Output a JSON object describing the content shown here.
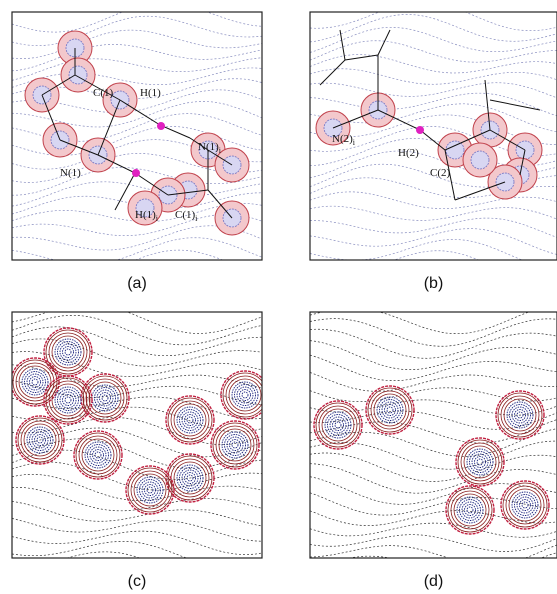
{
  "panels": [
    {
      "label": "(a)",
      "atoms": [
        {
          "text": "C(1)"
        },
        {
          "text": "H(1)"
        },
        {
          "text": "N(1)",
          "subscript": "i"
        },
        {
          "text": "N(1)"
        },
        {
          "text": "H(1)",
          "subscript": "i"
        },
        {
          "text": "C(1)",
          "subscript": "i"
        }
      ]
    },
    {
      "label": "(b)",
      "atoms": [
        {
          "text": "N(2)",
          "subscript": "i"
        },
        {
          "text": "H(2)"
        },
        {
          "text": "C(2)"
        }
      ]
    },
    {
      "label": "(c)"
    },
    {
      "label": "(d)"
    }
  ]
}
